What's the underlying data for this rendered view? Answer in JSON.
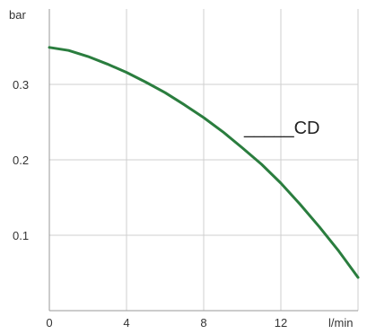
{
  "chart_data": {
    "type": "line",
    "title": "",
    "xlabel": "l/min",
    "ylabel": "bar",
    "xlim": [
      0,
      16
    ],
    "ylim": [
      0,
      0.4
    ],
    "x_ticks": [
      0,
      4,
      8,
      12
    ],
    "x_tick_labels": [
      "0",
      "4",
      "8",
      "12"
    ],
    "y_ticks": [
      0.1,
      0.2,
      0.3
    ],
    "y_tick_labels": [
      "0.1",
      "0.2",
      "0.3"
    ],
    "grid": true,
    "annotation": "_____CD",
    "line_color": "#2a7d3e",
    "grid_color": "#cfcfcf",
    "series": [
      {
        "x": [
          0,
          1,
          2,
          3,
          4,
          5,
          6,
          7,
          8,
          9,
          10,
          11,
          12,
          13,
          14,
          15,
          16
        ],
        "y": [
          0.349,
          0.345,
          0.337,
          0.327,
          0.316,
          0.303,
          0.289,
          0.273,
          0.256,
          0.237,
          0.216,
          0.194,
          0.169,
          0.141,
          0.111,
          0.079,
          0.044
        ]
      }
    ]
  }
}
